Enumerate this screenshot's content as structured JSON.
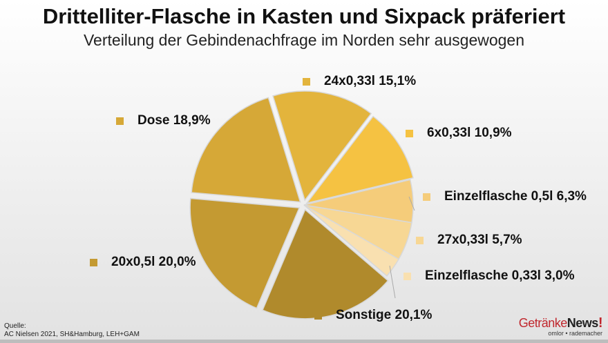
{
  "chart_data": {
    "type": "pie",
    "title": "Drittelliter-Flasche in Kasten und Sixpack präferiert",
    "subtitle": "Verteilung der Gebindenachfrage im Norden sehr ausgewogen",
    "slices": [
      {
        "label": "24x0,33l 15,1%",
        "value": 15.1,
        "color": "#e3b43c"
      },
      {
        "label": "6x0,33l 10,9%",
        "value": 10.9,
        "color": "#f5c242"
      },
      {
        "label": "Einzelflasche 0,5l 6,3%",
        "value": 6.3,
        "color": "#f5cc7a"
      },
      {
        "label": "27x0,33l 5,7%",
        "value": 5.7,
        "color": "#f7d794"
      },
      {
        "label": "Einzelflasche 0,33l 3,0%",
        "value": 3.0,
        "color": "#f9e0b0"
      },
      {
        "label": "Sonstige 20,1%",
        "value": 20.1,
        "color": "#b08a2c"
      },
      {
        "label": "20x0,5l 20,0%",
        "value": 20.0,
        "color": "#c49a32"
      },
      {
        "label": "Dose 18,9%",
        "value": 18.9,
        "color": "#d6a837"
      }
    ]
  },
  "source": {
    "line1": "Quelle:",
    "line2": "AC Nielsen 2021, SH&Hamburg, LEH+GAM"
  },
  "logo": {
    "part1": "Getränke",
    "part2": "News",
    "mark": "!",
    "tagline": "omlor • rademacher"
  }
}
